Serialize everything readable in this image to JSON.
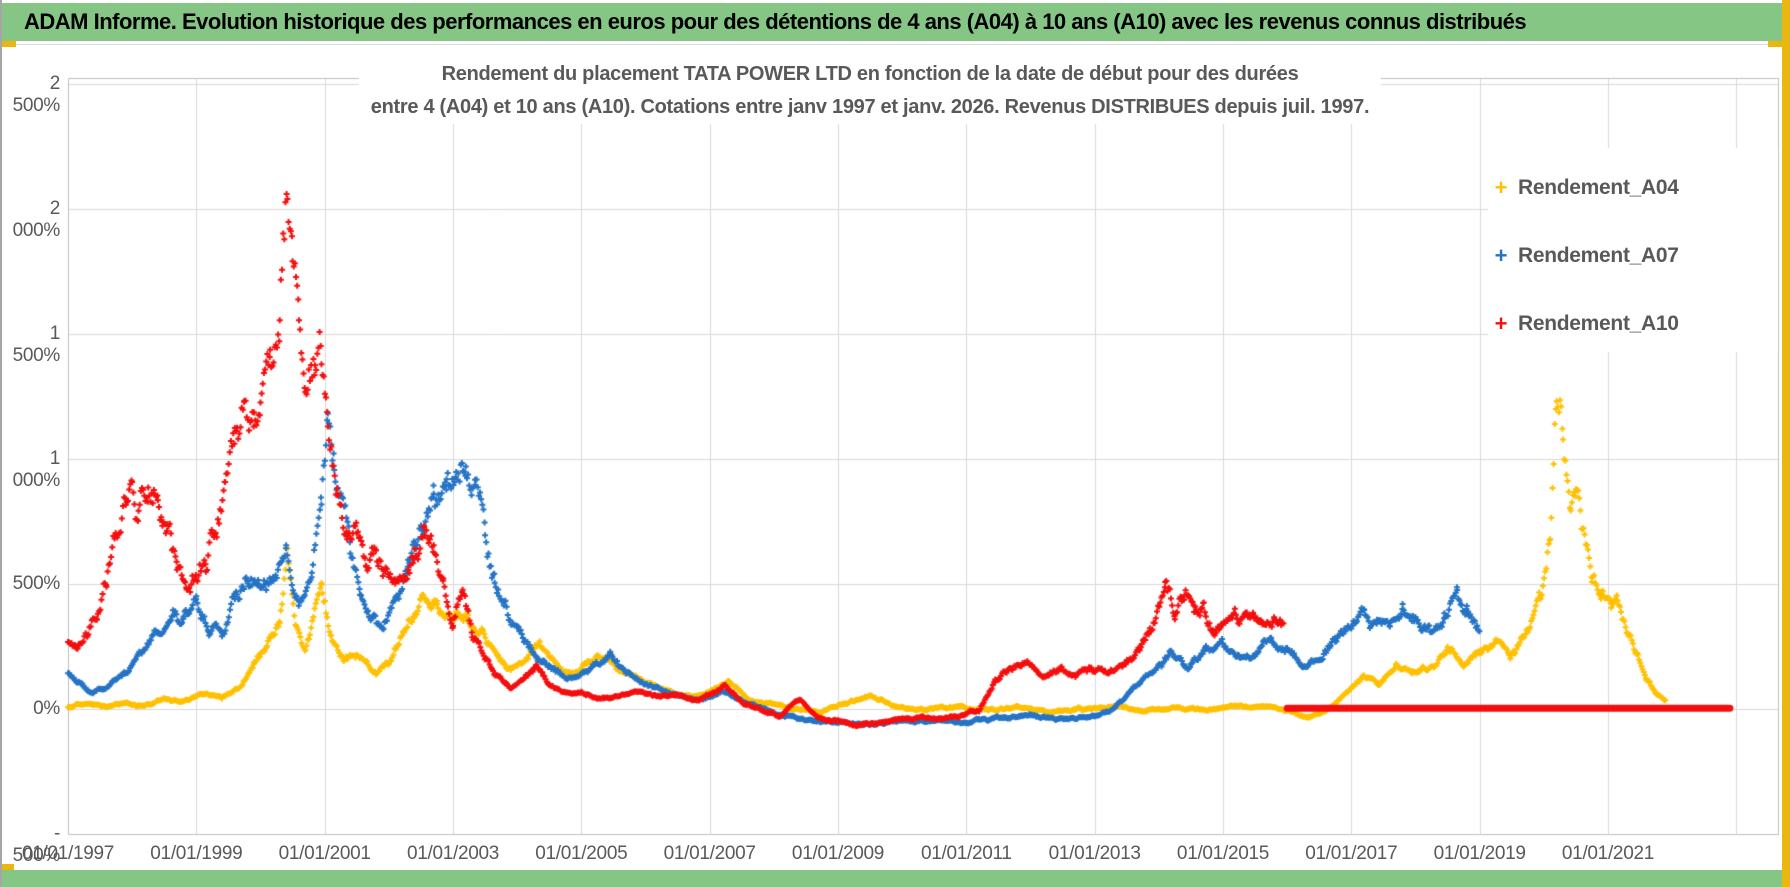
{
  "page": {
    "header_title": "ADAM Informe. Evolution historique des performances en euros pour des détentions de 4 ans (A04) à 10 ans (A10) avec les revenus connus distribués",
    "accent_green": "#85C685",
    "accent_gold": "#E9B70F",
    "legend_marker_glyph": "+"
  },
  "chart_data": {
    "type": "scatter",
    "title_line1": "Rendement du placement TATA POWER LTD en fonction de la date de début pour des durées",
    "title_line2": "entre 4 (A04) et 10 ans (A10). Cotations entre janv 1997 et janv. 2026. Revenus DISTRIBUES depuis juil. 1997.",
    "marker": "plus",
    "grid": true,
    "legend_position": "top-right",
    "xlim": [
      1997.0,
      2023.65
    ],
    "ylim": [
      -500,
      2524
    ],
    "yticks": [
      {
        "value": 2500,
        "label": "2 500%"
      },
      {
        "value": 2000,
        "label": "2 000%"
      },
      {
        "value": 1500,
        "label": "1 500%"
      },
      {
        "value": 1000,
        "label": "1 000%"
      },
      {
        "value": 500,
        "label": "500%"
      },
      {
        "value": 0,
        "label": "0%"
      },
      {
        "value": -500,
        "label": "- 500%"
      }
    ],
    "xticks": [
      {
        "year": 1997,
        "label": "01/01/1997"
      },
      {
        "year": 1999,
        "label": "01/01/1999"
      },
      {
        "year": 2001,
        "label": "01/01/2001"
      },
      {
        "year": 2003,
        "label": "01/01/2003"
      },
      {
        "year": 2005,
        "label": "01/01/2005"
      },
      {
        "year": 2007,
        "label": "01/01/2007"
      },
      {
        "year": 2009,
        "label": "01/01/2009"
      },
      {
        "year": 2011,
        "label": "01/01/2011"
      },
      {
        "year": 2013,
        "label": "01/01/2013"
      },
      {
        "year": 2015,
        "label": "01/01/2015"
      },
      {
        "year": 2017,
        "label": "01/01/2017"
      },
      {
        "year": 2019,
        "label": "01/01/2019"
      },
      {
        "year": 2021,
        "label": "01/01/2021"
      }
    ],
    "series": [
      {
        "name": "Rendement_A04",
        "color": "#FFC000",
        "points": [
          [
            1997.0,
            5
          ],
          [
            1997.3,
            25
          ],
          [
            1997.6,
            10
          ],
          [
            1997.9,
            30
          ],
          [
            1998.2,
            15
          ],
          [
            1998.5,
            40
          ],
          [
            1998.8,
            30
          ],
          [
            1999.1,
            60
          ],
          [
            1999.4,
            45
          ],
          [
            1999.7,
            100
          ],
          [
            1999.9,
            180
          ],
          [
            2000.1,
            260
          ],
          [
            2000.3,
            380
          ],
          [
            2000.42,
            680
          ],
          [
            2000.55,
            320
          ],
          [
            2000.7,
            240
          ],
          [
            2000.95,
            480
          ],
          [
            2001.1,
            280
          ],
          [
            2001.3,
            200
          ],
          [
            2001.5,
            230
          ],
          [
            2001.8,
            140
          ],
          [
            2002.0,
            190
          ],
          [
            2002.2,
            300
          ],
          [
            2002.5,
            420
          ],
          [
            2002.75,
            430
          ],
          [
            2003.0,
            340
          ],
          [
            2003.2,
            390
          ],
          [
            2003.45,
            300
          ],
          [
            2003.7,
            180
          ],
          [
            2003.9,
            150
          ],
          [
            2004.1,
            200
          ],
          [
            2004.35,
            260
          ],
          [
            2004.6,
            170
          ],
          [
            2004.9,
            140
          ],
          [
            2005.1,
            180
          ],
          [
            2005.35,
            230
          ],
          [
            2005.6,
            150
          ],
          [
            2005.9,
            120
          ],
          [
            2006.2,
            90
          ],
          [
            2006.5,
            60
          ],
          [
            2006.8,
            50
          ],
          [
            2007.1,
            80
          ],
          [
            2007.3,
            110
          ],
          [
            2007.6,
            40
          ],
          [
            2007.9,
            20
          ],
          [
            2008.3,
            0
          ],
          [
            2008.7,
            -10
          ],
          [
            2009.1,
            20
          ],
          [
            2009.5,
            60
          ],
          [
            2009.9,
            10
          ],
          [
            2010.3,
            0
          ],
          [
            2010.8,
            10
          ],
          [
            2011.3,
            -5
          ],
          [
            2011.8,
            5
          ],
          [
            2012.3,
            -10
          ],
          [
            2012.8,
            0
          ],
          [
            2013.3,
            10
          ],
          [
            2013.8,
            -5
          ],
          [
            2014.3,
            5
          ],
          [
            2014.8,
            0
          ],
          [
            2015.3,
            10
          ],
          [
            2015.8,
            0
          ],
          [
            2016.1,
            -20
          ],
          [
            2016.35,
            -35
          ],
          [
            2016.6,
            -10
          ],
          [
            2016.9,
            60
          ],
          [
            2017.2,
            130
          ],
          [
            2017.45,
            100
          ],
          [
            2017.7,
            170
          ],
          [
            2017.95,
            140
          ],
          [
            2018.2,
            160
          ],
          [
            2018.5,
            230
          ],
          [
            2018.75,
            190
          ],
          [
            2019.0,
            240
          ],
          [
            2019.3,
            260
          ],
          [
            2019.5,
            220
          ],
          [
            2019.75,
            320
          ],
          [
            2019.95,
            430
          ],
          [
            2020.1,
            700
          ],
          [
            2020.2,
            1280
          ],
          [
            2020.3,
            1100
          ],
          [
            2020.42,
            880
          ],
          [
            2020.5,
            920
          ],
          [
            2020.6,
            750
          ],
          [
            2020.75,
            560
          ],
          [
            2020.9,
            480
          ],
          [
            2021.05,
            440
          ],
          [
            2021.15,
            460
          ],
          [
            2021.3,
            300
          ],
          [
            2021.45,
            210
          ],
          [
            2021.6,
            130
          ],
          [
            2021.75,
            60
          ],
          [
            2021.9,
            35
          ]
        ]
      },
      {
        "name": "Rendement_A07",
        "color": "#2473C5",
        "points": [
          [
            1997.0,
            150
          ],
          [
            1997.15,
            110
          ],
          [
            1997.35,
            60
          ],
          [
            1997.55,
            80
          ],
          [
            1997.75,
            120
          ],
          [
            1997.95,
            150
          ],
          [
            1998.15,
            230
          ],
          [
            1998.4,
            320
          ],
          [
            1998.6,
            400
          ],
          [
            1998.8,
            370
          ],
          [
            1999.0,
            420
          ],
          [
            1999.2,
            320
          ],
          [
            1999.4,
            300
          ],
          [
            1999.6,
            420
          ],
          [
            1999.8,
            520
          ],
          [
            2000.0,
            560
          ],
          [
            2000.2,
            500
          ],
          [
            2000.4,
            620
          ],
          [
            2000.6,
            450
          ],
          [
            2000.8,
            550
          ],
          [
            2000.95,
            800
          ],
          [
            2001.05,
            1250
          ],
          [
            2001.15,
            1000
          ],
          [
            2001.25,
            850
          ],
          [
            2001.4,
            600
          ],
          [
            2001.55,
            450
          ],
          [
            2001.7,
            380
          ],
          [
            2001.9,
            300
          ],
          [
            2002.1,
            420
          ],
          [
            2002.3,
            560
          ],
          [
            2002.5,
            700
          ],
          [
            2002.7,
            840
          ],
          [
            2002.9,
            930
          ],
          [
            2003.05,
            1010
          ],
          [
            2003.2,
            950
          ],
          [
            2003.35,
            880
          ],
          [
            2003.5,
            700
          ],
          [
            2003.65,
            520
          ],
          [
            2003.8,
            430
          ],
          [
            2004.0,
            310
          ],
          [
            2004.3,
            210
          ],
          [
            2004.6,
            150
          ],
          [
            2004.9,
            120
          ],
          [
            2005.2,
            170
          ],
          [
            2005.45,
            210
          ],
          [
            2005.7,
            150
          ],
          [
            2006.0,
            90
          ],
          [
            2006.3,
            70
          ],
          [
            2006.6,
            45
          ],
          [
            2006.9,
            35
          ],
          [
            2007.2,
            70
          ],
          [
            2007.5,
            30
          ],
          [
            2007.8,
            0
          ],
          [
            2008.2,
            -30
          ],
          [
            2008.6,
            -45
          ],
          [
            2009.0,
            -55
          ],
          [
            2009.5,
            -60
          ],
          [
            2010.0,
            -50
          ],
          [
            2010.5,
            -45
          ],
          [
            2011.0,
            -50
          ],
          [
            2011.5,
            -35
          ],
          [
            2012.0,
            -25
          ],
          [
            2012.5,
            -40
          ],
          [
            2013.0,
            -30
          ],
          [
            2013.3,
            0
          ],
          [
            2013.6,
            80
          ],
          [
            2013.9,
            140
          ],
          [
            2014.2,
            220
          ],
          [
            2014.45,
            180
          ],
          [
            2014.7,
            230
          ],
          [
            2015.0,
            250
          ],
          [
            2015.25,
            200
          ],
          [
            2015.5,
            230
          ],
          [
            2015.75,
            280
          ],
          [
            2016.0,
            240
          ],
          [
            2016.25,
            170
          ],
          [
            2016.5,
            220
          ],
          [
            2016.75,
            280
          ],
          [
            2017.0,
            340
          ],
          [
            2017.2,
            410
          ],
          [
            2017.4,
            350
          ],
          [
            2017.6,
            310
          ],
          [
            2017.8,
            390
          ],
          [
            2018.0,
            350
          ],
          [
            2018.25,
            300
          ],
          [
            2018.45,
            350
          ],
          [
            2018.65,
            450
          ],
          [
            2018.8,
            410
          ],
          [
            2019.0,
            320
          ]
        ]
      },
      {
        "name": "Rendement_A10",
        "color": "#F50D0D",
        "points": [
          [
            1997.0,
            260
          ],
          [
            1997.15,
            230
          ],
          [
            1997.3,
            300
          ],
          [
            1997.45,
            380
          ],
          [
            1997.6,
            520
          ],
          [
            1997.75,
            700
          ],
          [
            1997.9,
            920
          ],
          [
            1998.0,
            980
          ],
          [
            1998.1,
            840
          ],
          [
            1998.25,
            920
          ],
          [
            1998.4,
            820
          ],
          [
            1998.55,
            700
          ],
          [
            1998.7,
            560
          ],
          [
            1998.85,
            490
          ],
          [
            1999.0,
            540
          ],
          [
            1999.15,
            620
          ],
          [
            1999.3,
            760
          ],
          [
            1999.45,
            900
          ],
          [
            1999.6,
            1050
          ],
          [
            1999.75,
            1180
          ],
          [
            1999.9,
            1130
          ],
          [
            2000.0,
            1250
          ],
          [
            2000.15,
            1380
          ],
          [
            2000.3,
            1600
          ],
          [
            2000.42,
            2113
          ],
          [
            2000.5,
            1850
          ],
          [
            2000.6,
            1500
          ],
          [
            2000.7,
            1280
          ],
          [
            2000.85,
            1380
          ],
          [
            2000.95,
            1430
          ],
          [
            2001.05,
            1150
          ],
          [
            2001.2,
            870
          ],
          [
            2001.35,
            640
          ],
          [
            2001.5,
            720
          ],
          [
            2001.65,
            560
          ],
          [
            2001.8,
            640
          ],
          [
            2001.95,
            540
          ],
          [
            2002.1,
            500
          ],
          [
            2002.25,
            560
          ],
          [
            2002.4,
            640
          ],
          [
            2002.55,
            740
          ],
          [
            2002.7,
            650
          ],
          [
            2002.85,
            520
          ],
          [
            2003.0,
            380
          ],
          [
            2003.15,
            450
          ],
          [
            2003.3,
            300
          ],
          [
            2003.5,
            210
          ],
          [
            2003.7,
            130
          ],
          [
            2003.9,
            90
          ],
          [
            2004.1,
            120
          ],
          [
            2004.3,
            170
          ],
          [
            2004.5,
            90
          ],
          [
            2004.75,
            60
          ],
          [
            2005.0,
            70
          ],
          [
            2005.3,
            45
          ],
          [
            2005.6,
            55
          ],
          [
            2005.9,
            65
          ],
          [
            2006.2,
            45
          ],
          [
            2006.5,
            55
          ],
          [
            2006.8,
            35
          ],
          [
            2007.05,
            60
          ],
          [
            2007.25,
            95
          ],
          [
            2007.5,
            30
          ],
          [
            2007.8,
            -10
          ],
          [
            2008.1,
            -25
          ],
          [
            2008.4,
            40
          ],
          [
            2008.7,
            -35
          ],
          [
            2009.0,
            -55
          ],
          [
            2009.3,
            -65
          ],
          [
            2009.7,
            -50
          ],
          [
            2010.1,
            -40
          ],
          [
            2010.5,
            -35
          ],
          [
            2010.9,
            -30
          ],
          [
            2011.2,
            0
          ],
          [
            2011.45,
            110
          ],
          [
            2011.7,
            170
          ],
          [
            2011.95,
            185
          ],
          [
            2012.2,
            110
          ],
          [
            2012.45,
            160
          ],
          [
            2012.7,
            140
          ],
          [
            2012.95,
            170
          ],
          [
            2013.2,
            150
          ],
          [
            2013.45,
            170
          ],
          [
            2013.7,
            240
          ],
          [
            2013.9,
            320
          ],
          [
            2014.1,
            480
          ],
          [
            2014.25,
            380
          ],
          [
            2014.4,
            440
          ],
          [
            2014.55,
            390
          ],
          [
            2014.7,
            420
          ],
          [
            2014.85,
            310
          ],
          [
            2015.0,
            360
          ],
          [
            2015.15,
            420
          ],
          [
            2015.3,
            370
          ],
          [
            2015.45,
            400
          ],
          [
            2015.6,
            350
          ],
          [
            2015.8,
            380
          ],
          [
            2015.95,
            345
          ]
        ],
        "flat_segment": {
          "from": 2016.0,
          "to": 2022.9,
          "value": 3
        }
      }
    ]
  }
}
